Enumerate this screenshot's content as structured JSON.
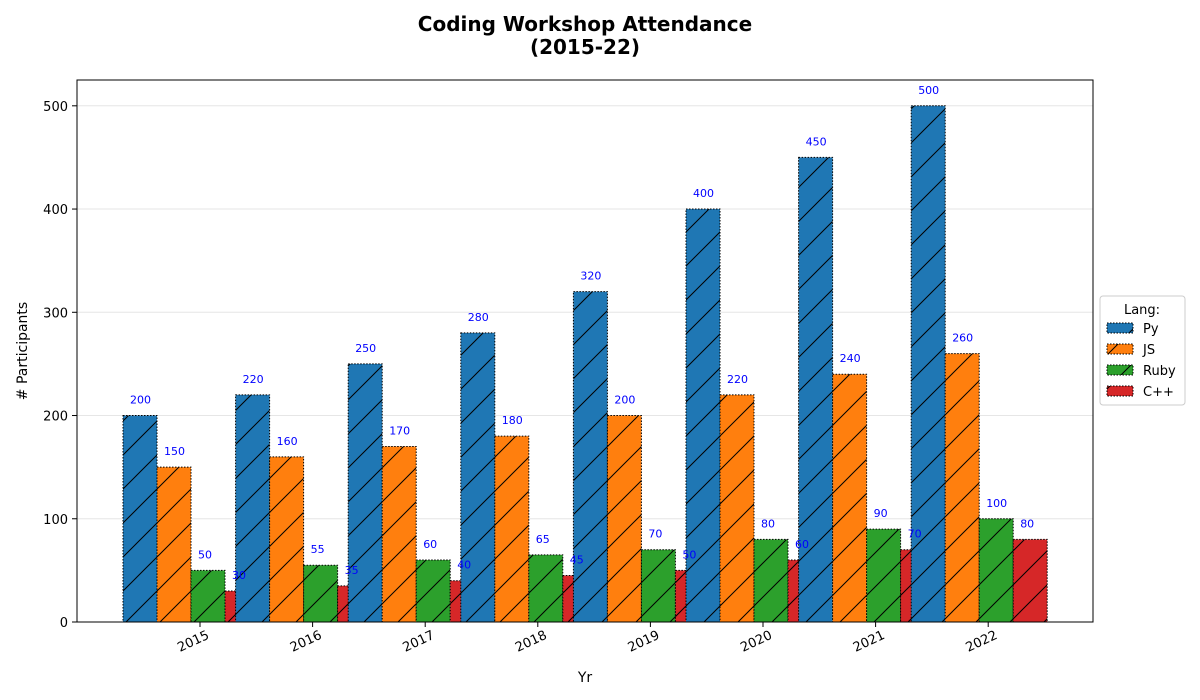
{
  "chart_data": {
    "type": "bar",
    "title_line1": "Coding Workshop Attendance",
    "title_line2": "(2015-22)",
    "xlabel": "Yr",
    "ylabel": "# Participants",
    "categories": [
      "2015",
      "2016",
      "2017",
      "2018",
      "2019",
      "2020",
      "2021",
      "2022"
    ],
    "ylim": [
      0,
      525
    ],
    "yticks": [
      0,
      100,
      200,
      300,
      400,
      500
    ],
    "grid": "y",
    "legend": {
      "title": "Lang:",
      "placement": "right"
    },
    "data_label_color": "#0000ff",
    "series": [
      {
        "name": "Py",
        "color": "#1f77b4",
        "values": [
          200,
          220,
          250,
          280,
          320,
          400,
          450,
          500
        ]
      },
      {
        "name": "JS",
        "color": "#ff7f0e",
        "values": [
          150,
          160,
          170,
          180,
          200,
          220,
          240,
          260
        ]
      },
      {
        "name": "Ruby",
        "color": "#2ca02c",
        "values": [
          50,
          55,
          60,
          65,
          70,
          80,
          90,
          100
        ]
      },
      {
        "name": "C++",
        "color": "#d62728",
        "values": [
          30,
          35,
          40,
          45,
          50,
          60,
          70,
          80
        ]
      }
    ]
  }
}
